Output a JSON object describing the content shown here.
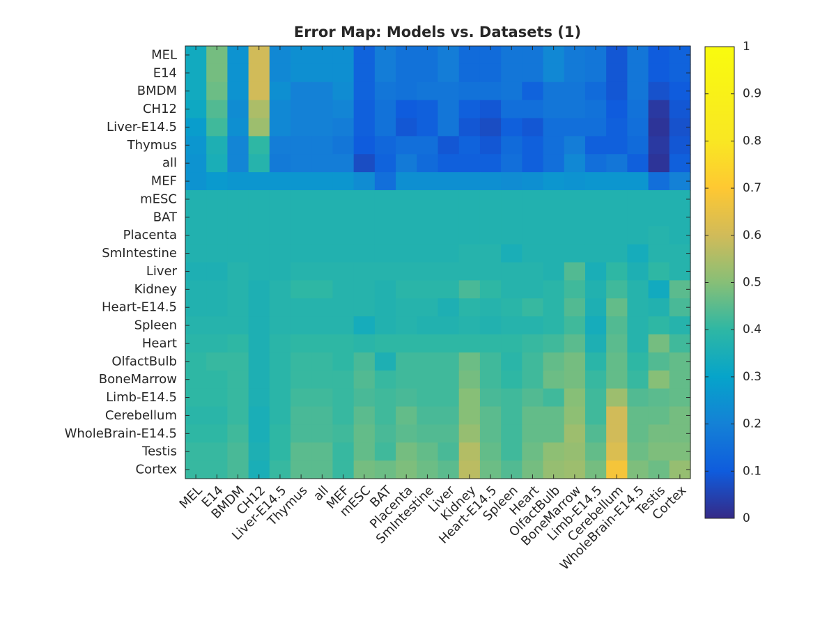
{
  "chart_data": {
    "type": "heatmap",
    "title": "Error Map: Models vs. Datasets (1)",
    "xlabel": "",
    "ylabel": "",
    "colormap": "parula",
    "clim": [
      0,
      1
    ],
    "rows": [
      "MEL",
      "E14",
      "BMDM",
      "CH12",
      "Liver-E14.5",
      "Thymus",
      "all",
      "MEF",
      "mESC",
      "BAT",
      "Placenta",
      "SmIntestine",
      "Liver",
      "Kidney",
      "Heart-E14.5",
      "Spleen",
      "Heart",
      "OlfactBulb",
      "BoneMarrow",
      "Limb-E14.5",
      "Cerebellum",
      "WholeBrain-E14.5",
      "Testis",
      "Cortex"
    ],
    "columns": [
      "MEL",
      "E14",
      "BMDM",
      "CH12",
      "Liver-E14.5",
      "Thymus",
      "all",
      "MEF",
      "mESC",
      "BAT",
      "Placenta",
      "SmIntestine",
      "Liver",
      "Kidney",
      "Heart-E14.5",
      "Spleen",
      "Heart",
      "OlfactBulb",
      "BoneMarrow",
      "Limb-E14.5",
      "Cerebellum",
      "WholeBrain-E14.5",
      "Testis",
      "Cortex"
    ],
    "values": [
      [
        0.33,
        0.48,
        0.25,
        0.6,
        0.22,
        0.24,
        0.24,
        0.24,
        0.12,
        0.19,
        0.16,
        0.16,
        0.19,
        0.14,
        0.14,
        0.17,
        0.17,
        0.22,
        0.18,
        0.17,
        0.09,
        0.17,
        0.1,
        0.12
      ],
      [
        0.33,
        0.48,
        0.25,
        0.6,
        0.22,
        0.24,
        0.24,
        0.24,
        0.12,
        0.19,
        0.16,
        0.16,
        0.19,
        0.14,
        0.14,
        0.17,
        0.17,
        0.22,
        0.18,
        0.17,
        0.09,
        0.17,
        0.1,
        0.12
      ],
      [
        0.33,
        0.47,
        0.25,
        0.6,
        0.24,
        0.2,
        0.2,
        0.23,
        0.12,
        0.17,
        0.16,
        0.17,
        0.17,
        0.16,
        0.16,
        0.17,
        0.12,
        0.17,
        0.17,
        0.14,
        0.09,
        0.17,
        0.08,
        0.1
      ],
      [
        0.32,
        0.44,
        0.23,
        0.55,
        0.22,
        0.2,
        0.2,
        0.21,
        0.11,
        0.16,
        0.1,
        0.11,
        0.17,
        0.11,
        0.09,
        0.15,
        0.15,
        0.17,
        0.17,
        0.16,
        0.1,
        0.16,
        0.03,
        0.09
      ],
      [
        0.28,
        0.42,
        0.24,
        0.53,
        0.22,
        0.2,
        0.2,
        0.19,
        0.11,
        0.16,
        0.09,
        0.11,
        0.17,
        0.09,
        0.07,
        0.11,
        0.09,
        0.15,
        0.15,
        0.15,
        0.11,
        0.15,
        0.02,
        0.08
      ],
      [
        0.26,
        0.36,
        0.21,
        0.4,
        0.19,
        0.19,
        0.19,
        0.17,
        0.1,
        0.13,
        0.15,
        0.15,
        0.09,
        0.12,
        0.09,
        0.14,
        0.11,
        0.15,
        0.19,
        0.11,
        0.11,
        0.14,
        0.03,
        0.09
      ],
      [
        0.25,
        0.35,
        0.21,
        0.38,
        0.18,
        0.19,
        0.19,
        0.19,
        0.07,
        0.12,
        0.18,
        0.14,
        0.11,
        0.11,
        0.11,
        0.15,
        0.11,
        0.15,
        0.22,
        0.15,
        0.17,
        0.11,
        0.02,
        0.11
      ],
      [
        0.25,
        0.27,
        0.26,
        0.26,
        0.26,
        0.26,
        0.26,
        0.26,
        0.23,
        0.15,
        0.24,
        0.24,
        0.24,
        0.24,
        0.24,
        0.23,
        0.24,
        0.26,
        0.25,
        0.26,
        0.26,
        0.26,
        0.15,
        0.2
      ],
      [
        0.37,
        0.37,
        0.37,
        0.37,
        0.37,
        0.37,
        0.37,
        0.37,
        0.37,
        0.37,
        0.37,
        0.37,
        0.37,
        0.37,
        0.37,
        0.37,
        0.37,
        0.37,
        0.37,
        0.37,
        0.37,
        0.37,
        0.37,
        0.37
      ],
      [
        0.37,
        0.37,
        0.37,
        0.37,
        0.37,
        0.37,
        0.37,
        0.37,
        0.37,
        0.37,
        0.37,
        0.37,
        0.37,
        0.37,
        0.37,
        0.37,
        0.37,
        0.37,
        0.37,
        0.37,
        0.37,
        0.37,
        0.37,
        0.37
      ],
      [
        0.37,
        0.37,
        0.37,
        0.37,
        0.37,
        0.37,
        0.37,
        0.37,
        0.37,
        0.37,
        0.37,
        0.37,
        0.37,
        0.37,
        0.37,
        0.37,
        0.37,
        0.37,
        0.37,
        0.37,
        0.37,
        0.37,
        0.38,
        0.37
      ],
      [
        0.37,
        0.37,
        0.37,
        0.37,
        0.37,
        0.37,
        0.37,
        0.37,
        0.37,
        0.37,
        0.37,
        0.37,
        0.37,
        0.38,
        0.38,
        0.35,
        0.37,
        0.37,
        0.37,
        0.37,
        0.37,
        0.34,
        0.38,
        0.38
      ],
      [
        0.36,
        0.36,
        0.38,
        0.37,
        0.37,
        0.38,
        0.38,
        0.38,
        0.38,
        0.38,
        0.38,
        0.38,
        0.38,
        0.38,
        0.38,
        0.38,
        0.38,
        0.37,
        0.44,
        0.35,
        0.4,
        0.36,
        0.4,
        0.38
      ],
      [
        0.37,
        0.37,
        0.38,
        0.36,
        0.38,
        0.4,
        0.4,
        0.38,
        0.38,
        0.37,
        0.39,
        0.39,
        0.39,
        0.43,
        0.4,
        0.38,
        0.38,
        0.39,
        0.42,
        0.37,
        0.42,
        0.38,
        0.33,
        0.45
      ],
      [
        0.37,
        0.37,
        0.38,
        0.36,
        0.38,
        0.38,
        0.38,
        0.38,
        0.38,
        0.37,
        0.38,
        0.38,
        0.36,
        0.39,
        0.38,
        0.39,
        0.41,
        0.39,
        0.44,
        0.36,
        0.46,
        0.38,
        0.37,
        0.43
      ],
      [
        0.38,
        0.38,
        0.38,
        0.36,
        0.38,
        0.38,
        0.38,
        0.38,
        0.34,
        0.37,
        0.38,
        0.37,
        0.37,
        0.38,
        0.37,
        0.38,
        0.38,
        0.39,
        0.42,
        0.34,
        0.44,
        0.38,
        0.4,
        0.38
      ],
      [
        0.39,
        0.39,
        0.4,
        0.36,
        0.39,
        0.4,
        0.4,
        0.4,
        0.39,
        0.4,
        0.4,
        0.4,
        0.4,
        0.4,
        0.4,
        0.4,
        0.41,
        0.42,
        0.45,
        0.36,
        0.45,
        0.38,
        0.48,
        0.42
      ],
      [
        0.4,
        0.41,
        0.41,
        0.36,
        0.39,
        0.41,
        0.41,
        0.4,
        0.43,
        0.36,
        0.42,
        0.42,
        0.42,
        0.47,
        0.42,
        0.39,
        0.42,
        0.46,
        0.48,
        0.39,
        0.46,
        0.4,
        0.44,
        0.46
      ],
      [
        0.4,
        0.4,
        0.41,
        0.36,
        0.39,
        0.41,
        0.41,
        0.41,
        0.44,
        0.41,
        0.42,
        0.42,
        0.42,
        0.48,
        0.42,
        0.4,
        0.42,
        0.47,
        0.48,
        0.41,
        0.46,
        0.41,
        0.5,
        0.46
      ],
      [
        0.4,
        0.4,
        0.41,
        0.36,
        0.39,
        0.42,
        0.42,
        0.41,
        0.43,
        0.42,
        0.43,
        0.42,
        0.42,
        0.5,
        0.43,
        0.42,
        0.44,
        0.42,
        0.5,
        0.42,
        0.53,
        0.44,
        0.45,
        0.46
      ],
      [
        0.39,
        0.39,
        0.41,
        0.35,
        0.39,
        0.43,
        0.43,
        0.41,
        0.45,
        0.42,
        0.46,
        0.43,
        0.43,
        0.5,
        0.45,
        0.42,
        0.46,
        0.46,
        0.51,
        0.42,
        0.6,
        0.46,
        0.46,
        0.48
      ],
      [
        0.4,
        0.4,
        0.42,
        0.35,
        0.4,
        0.43,
        0.43,
        0.42,
        0.46,
        0.43,
        0.45,
        0.44,
        0.44,
        0.52,
        0.45,
        0.42,
        0.46,
        0.46,
        0.53,
        0.44,
        0.6,
        0.46,
        0.48,
        0.48
      ],
      [
        0.41,
        0.41,
        0.43,
        0.36,
        0.4,
        0.45,
        0.45,
        0.41,
        0.46,
        0.42,
        0.48,
        0.46,
        0.43,
        0.56,
        0.46,
        0.42,
        0.47,
        0.51,
        0.52,
        0.46,
        0.62,
        0.47,
        0.49,
        0.49
      ],
      [
        0.41,
        0.41,
        0.43,
        0.35,
        0.41,
        0.45,
        0.45,
        0.41,
        0.48,
        0.47,
        0.49,
        0.47,
        0.45,
        0.57,
        0.47,
        0.44,
        0.48,
        0.52,
        0.53,
        0.48,
        0.68,
        0.49,
        0.47,
        0.52
      ]
    ],
    "colorbar_ticks": [
      0,
      0.1,
      0.2,
      0.3,
      0.4,
      0.5,
      0.6,
      0.7,
      0.8,
      0.9,
      1
    ],
    "colorbar_tick_labels": [
      "0",
      "0.1",
      "0.2",
      "0.3",
      "0.4",
      "0.5",
      "0.6",
      "0.7",
      "0.8",
      "0.9",
      "1"
    ]
  }
}
